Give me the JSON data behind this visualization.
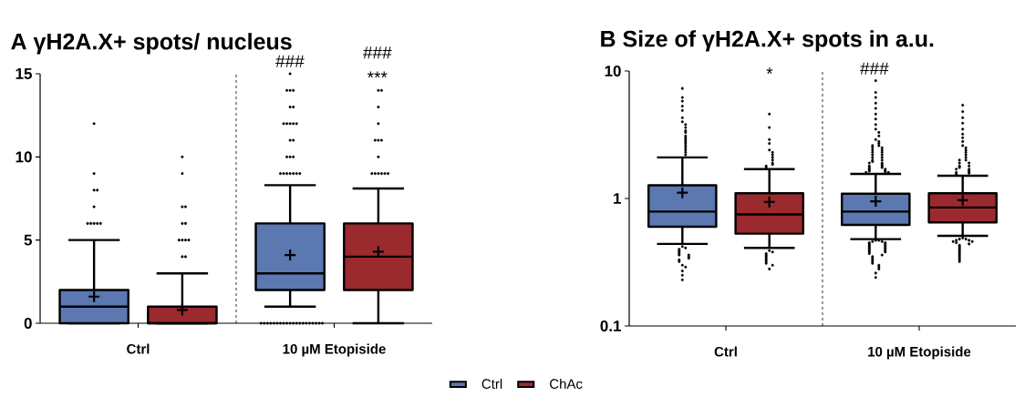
{
  "chart_data": [
    {
      "type": "box",
      "title": "A γH2A.X+ spots/ nucleus",
      "categories": [
        "Ctrl",
        "10 µM Etopiside"
      ],
      "ylim": [
        0,
        15
      ],
      "yticks": [
        0,
        5,
        10,
        15
      ],
      "legend": "bottom",
      "series": [
        {
          "name": "Ctrl",
          "color": "#5b78b0",
          "boxes": [
            {
              "low": 0,
              "q1": 0,
              "median": 1,
              "q3": 2,
              "high": 5,
              "mean": 1.6,
              "outliers": [
                6,
                6,
                6,
                6,
                6,
                7,
                8,
                8,
                9,
                12
              ]
            },
            {
              "low": 1,
              "q1": 2,
              "median": 3,
              "q3": 6,
              "high": 8.3,
              "mean": 4.1,
              "outliers": [
                0,
                0,
                0,
                0,
                0,
                0,
                0,
                0,
                0,
                0,
                0,
                0,
                0,
                0,
                0,
                0,
                0,
                0,
                0,
                0,
                9,
                9,
                9,
                9,
                9,
                9,
                9,
                10,
                10,
                10,
                11,
                11,
                12,
                12,
                12,
                12,
                12,
                13,
                13,
                14,
                14,
                14,
                15
              ]
            }
          ]
        },
        {
          "name": "ChAc",
          "color": "#9b2a2e",
          "boxes": [
            {
              "low": 0,
              "q1": 0,
              "median": 0,
              "q3": 1,
              "high": 3,
              "mean": 0.8,
              "outliers": [
                4,
                4,
                5,
                5,
                5,
                5,
                6,
                6,
                7,
                7,
                9,
                10
              ]
            },
            {
              "low": 0,
              "q1": 2,
              "median": 4,
              "q3": 6,
              "high": 8.1,
              "mean": 4.3,
              "outliers": [
                9,
                9,
                9,
                9,
                9,
                9,
                10,
                11,
                11,
                11,
                12,
                13,
                14,
                14
              ]
            }
          ]
        }
      ],
      "annotations": [
        "###",
        "###",
        "***"
      ]
    },
    {
      "type": "box",
      "title": "B Size of γH2A.X+ spots in a.u.",
      "categories": [
        "Ctrl",
        "10 µM Etopiside"
      ],
      "ylim": [
        0.1,
        10
      ],
      "yticks": [
        0.1,
        1,
        10
      ],
      "log": true,
      "series": [
        {
          "color": "#5b78b0",
          "boxes": [
            {
              "low": 0.44,
              "q1": 0.6,
              "median": 0.79,
              "q3": 1.27,
              "high": 2.1,
              "mean": 1.11,
              "outliers": [
                7.3,
                6.2,
                5.8,
                5.3,
                4.9,
                4.3,
                4.0,
                3.8,
                3.6,
                3.4,
                3.3,
                3.1,
                3.0,
                2.9,
                2.8,
                2.7,
                2.6,
                2.5,
                2.4,
                2.3,
                2.2,
                0.42,
                0.41,
                0.4,
                0.39,
                0.38,
                0.37,
                0.36,
                0.36,
                0.35,
                0.34,
                0.33,
                0.32,
                0.3,
                0.29,
                0.27,
                0.25,
                0.23
              ]
            },
            {
              "low": 0.48,
              "q1": 0.62,
              "median": 0.79,
              "q3": 1.09,
              "high": 1.56,
              "mean": 0.95,
              "outliers": [
                8.4,
                6.8,
                6.2,
                5.6,
                5.1,
                4.6,
                4.2,
                3.8,
                3.5,
                3.3,
                3.1,
                2.9,
                2.8,
                2.7,
                2.6,
                2.6,
                2.5,
                2.5,
                2.4,
                2.4,
                2.3,
                2.3,
                2.2,
                2.2,
                2.1,
                2.1,
                2.0,
                2.0,
                1.95,
                1.9,
                1.9,
                1.85,
                1.8,
                1.8,
                1.75,
                1.75,
                1.7,
                1.7,
                1.68,
                1.66,
                1.64,
                1.62,
                1.6,
                1.6,
                0.47,
                0.47,
                0.46,
                0.46,
                0.45,
                0.45,
                0.44,
                0.44,
                0.43,
                0.43,
                0.42,
                0.42,
                0.41,
                0.41,
                0.4,
                0.4,
                0.39,
                0.39,
                0.38,
                0.38,
                0.37,
                0.36,
                0.35,
                0.34,
                0.33,
                0.32,
                0.31,
                0.3,
                0.29,
                0.28,
                0.26,
                0.24
              ]
            }
          ]
        },
        {
          "color": "#9b2a2e",
          "boxes": [
            {
              "low": 0.41,
              "q1": 0.53,
              "median": 0.75,
              "q3": 1.1,
              "high": 1.7,
              "mean": 0.94,
              "outliers": [
                4.6,
                3.6,
                2.9,
                2.7,
                2.4,
                2.3,
                2.2,
                2.1,
                2.0,
                1.9,
                1.85,
                1.8,
                1.75,
                0.39,
                0.38,
                0.37,
                0.36,
                0.35,
                0.34,
                0.33,
                0.32,
                0.31,
                0.3,
                0.28
              ]
            },
            {
              "low": 0.51,
              "q1": 0.65,
              "median": 0.85,
              "q3": 1.1,
              "high": 1.51,
              "mean": 0.97,
              "outliers": [
                5.4,
                4.8,
                4.3,
                3.9,
                3.5,
                3.2,
                3.0,
                2.8,
                2.6,
                2.5,
                2.4,
                2.3,
                2.2,
                2.1,
                2.0,
                2.0,
                1.9,
                1.9,
                1.8,
                1.8,
                1.75,
                1.7,
                1.7,
                1.65,
                1.62,
                1.6,
                1.58,
                1.55,
                0.49,
                0.48,
                0.48,
                0.47,
                0.47,
                0.46,
                0.46,
                0.45,
                0.44,
                0.43,
                0.42,
                0.41,
                0.4,
                0.39,
                0.38,
                0.37,
                0.36,
                0.35,
                0.34,
                0.33,
                0.32
              ]
            }
          ]
        }
      ],
      "annotations": [
        "*",
        "###"
      ]
    }
  ]
}
